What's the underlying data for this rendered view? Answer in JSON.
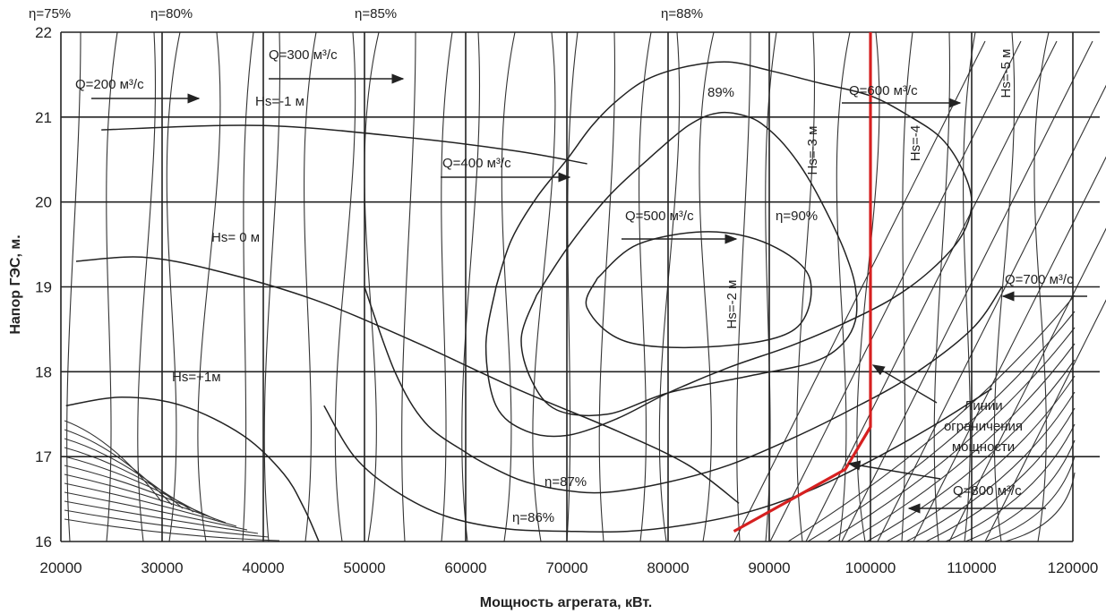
{
  "chart_data": {
    "type": "line",
    "xlabel": "Мощность агрегата, кВт.",
    "ylabel": "Напор ГЭС, м.",
    "xlim": [
      20000,
      120000
    ],
    "ylim": [
      16,
      22
    ],
    "x_ticks": [
      20000,
      30000,
      40000,
      50000,
      60000,
      70000,
      80000,
      90000,
      100000,
      110000,
      120000
    ],
    "y_ticks": [
      16,
      17,
      18,
      19,
      20,
      21,
      22
    ],
    "grid": true,
    "series": [
      {
        "name": "Линии ограничения мощности",
        "color": "#d62020",
        "x": [
          86500,
          93000,
          97500,
          100000,
          100000,
          100000
        ],
        "y": [
          16.12,
          16.55,
          16.85,
          17.35,
          18.2,
          22
        ]
      }
    ],
    "efficiency_contours": [
      {
        "label": "η=90%",
        "x": [
          73000,
          77000,
          84000,
          90000,
          94000,
          92500,
          85000,
          76000,
          72000,
          73000
        ],
        "y": [
          19.1,
          19.5,
          19.65,
          19.5,
          19.1,
          18.5,
          18.3,
          18.35,
          18.75,
          19.1
        ]
      },
      {
        "label": "89%",
        "x": [
          67000,
          70000,
          74000,
          78000,
          82000,
          85000,
          88000,
          90000,
          92000,
          94000,
          96000,
          97500,
          98500,
          98500,
          97000,
          94000,
          88000,
          80000,
          74000,
          69000,
          66500,
          65500,
          67000
        ],
        "y": [
          18.9,
          19.45,
          20.05,
          20.5,
          20.9,
          21.05,
          21.0,
          20.85,
          20.6,
          20.25,
          19.8,
          19.4,
          19.0,
          18.6,
          18.3,
          18.1,
          17.95,
          17.75,
          17.5,
          17.55,
          17.9,
          18.4,
          18.9
        ]
      },
      {
        "label": "η=88%",
        "x": [
          63000,
          64500,
          67000,
          70000,
          72500,
          75000,
          78000,
          82000,
          86000,
          90000,
          95000,
          100000,
          104000,
          107000,
          109000,
          110000,
          109000,
          106000,
          102000,
          97000,
          92000,
          86000,
          80000,
          75000,
          70000,
          66000,
          63000,
          62000,
          63000
        ],
        "y": [
          19.0,
          19.55,
          20.05,
          20.5,
          20.9,
          21.2,
          21.45,
          21.6,
          21.65,
          21.55,
          21.4,
          21.25,
          21.0,
          20.75,
          20.4,
          20.0,
          19.6,
          19.2,
          18.85,
          18.55,
          18.3,
          18.05,
          17.75,
          17.45,
          17.25,
          17.3,
          17.6,
          18.3,
          19.0
        ]
      },
      {
        "label": "η=87%",
        "x": [
          50000,
          53000,
          56000,
          60000,
          63000,
          66000,
          70000,
          74000,
          80000,
          86000,
          92000,
          98000,
          104000,
          110000,
          113000
        ],
        "y": [
          19.0,
          18.0,
          17.4,
          17.05,
          16.85,
          16.7,
          16.6,
          16.58,
          16.7,
          16.9,
          17.2,
          17.55,
          17.95,
          18.5,
          19.0
        ]
      },
      {
        "label": "η=86%",
        "x": [
          46000,
          49000,
          53000,
          58000,
          64000,
          70000,
          76000,
          82000,
          88000,
          94000,
          100000,
          106000,
          112000
        ],
        "y": [
          17.6,
          17.0,
          16.6,
          16.3,
          16.15,
          16.12,
          16.12,
          16.2,
          16.35,
          16.6,
          16.95,
          17.35,
          17.8
        ]
      }
    ],
    "head_isolines": [
      {
        "label": "Hs=-1 м",
        "x": [
          24000,
          40000,
          55000,
          65000,
          72000
        ],
        "y": [
          20.85,
          20.9,
          20.75,
          20.6,
          20.45
        ]
      },
      {
        "label": "Hs= 0 м",
        "x": [
          21500,
          28000,
          35000,
          45000,
          55000,
          65000,
          75000,
          82000,
          87000
        ],
        "y": [
          19.3,
          19.35,
          19.2,
          18.85,
          18.35,
          17.8,
          17.3,
          16.9,
          16.45
        ]
      },
      {
        "label": "Hs=+1м",
        "x": [
          20500,
          26000,
          32000,
          38000,
          42000,
          44000,
          45500
        ],
        "y": [
          17.6,
          17.7,
          17.6,
          17.25,
          16.8,
          16.4,
          16.0
        ]
      }
    ],
    "annotations": [
      {
        "text": "η=75%"
      },
      {
        "text": "η=80%"
      },
      {
        "text": "η=85%"
      },
      {
        "text": "η=88%"
      },
      {
        "text": "89%"
      },
      {
        "text": "η=90%"
      },
      {
        "text": "η=87%"
      },
      {
        "text": "η=86%"
      },
      {
        "text": "Q=200 м³/с"
      },
      {
        "text": "Q=300 м³/с"
      },
      {
        "text": "Q=400 м³/с"
      },
      {
        "text": "Q=500 м³/с"
      },
      {
        "text": "Q=600 м³/с"
      },
      {
        "text": "Q=700 м³/с"
      },
      {
        "text": "Q=800 м³/с"
      },
      {
        "text": "Hs=-1 м"
      },
      {
        "text": "Hs= 0 м"
      },
      {
        "text": "Hs=+1м"
      },
      {
        "text": "Hs=-2 м"
      },
      {
        "text": "Hs=-3 м"
      },
      {
        "text": "Hs=-4"
      },
      {
        "text": "Hs=-5 м"
      },
      {
        "text": "Линии"
      },
      {
        "text": "ограничения"
      },
      {
        "text": "мощности"
      }
    ]
  }
}
